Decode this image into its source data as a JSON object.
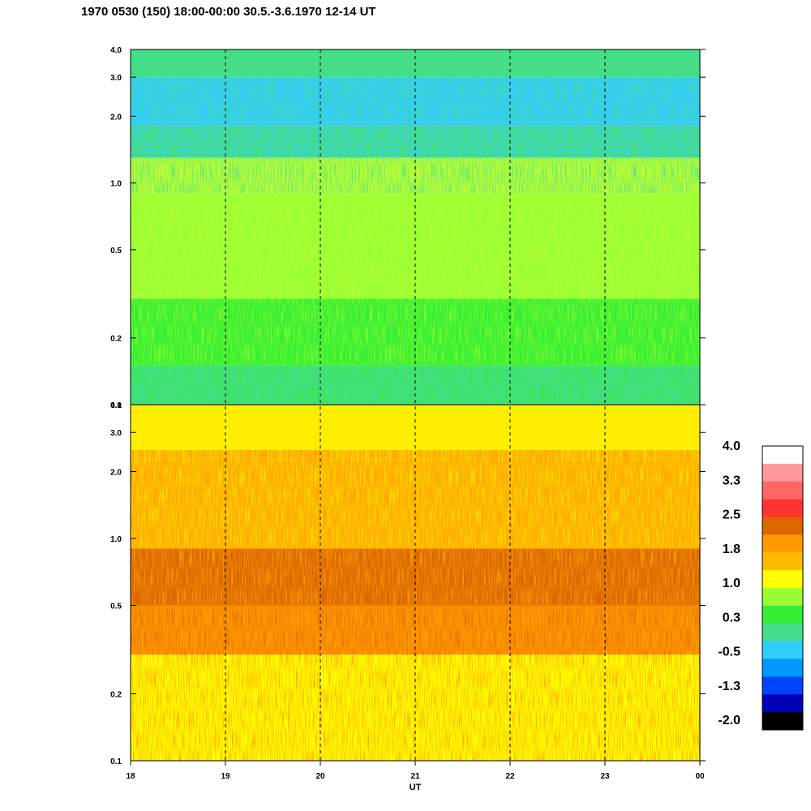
{
  "title": "1970 0530 (150) 18:00-00:00 30.5.-3.6.1970  12-14 UT",
  "chart_data": {
    "type": "heatmap",
    "xlabel": "UT",
    "x_ticks": [
      "18",
      "19",
      "20",
      "21",
      "22",
      "23",
      "00"
    ],
    "x_range": [
      18,
      24
    ],
    "vertical_dashed_lines_at": [
      19,
      20,
      21,
      22,
      23
    ],
    "y_scale": "log",
    "y_range": [
      0.1,
      4.0
    ],
    "y_ticks": [
      "0.1",
      "0.2",
      "0.5",
      "1.0",
      "2.0",
      "3.0",
      "4.0"
    ],
    "y_tick_values": [
      0.1,
      0.2,
      0.5,
      1.0,
      2.0,
      3.0,
      4.0
    ],
    "panels": [
      {
        "position": "top",
        "dominant_levels": [
          "0.3",
          "-0.5",
          "-1.3"
        ],
        "bands": [
          {
            "from": 0.1,
            "to": 0.15,
            "color": "#44dd88"
          },
          {
            "from": 0.15,
            "to": 0.3,
            "color": "#33ee33"
          },
          {
            "from": 0.3,
            "to": 0.9,
            "color": "#99ff33"
          },
          {
            "from": 0.9,
            "to": 1.3,
            "color": "#bbff33"
          },
          {
            "from": 1.3,
            "to": 1.8,
            "color": "#44dd88"
          },
          {
            "from": 1.8,
            "to": 3.0,
            "color": "#33ccff"
          },
          {
            "from": 3.0,
            "to": 4.0,
            "color": "#44dd88"
          }
        ]
      },
      {
        "position": "bottom",
        "dominant_levels": [
          "1.0",
          "1.8",
          "2.5"
        ],
        "bands": [
          {
            "from": 0.1,
            "to": 0.3,
            "color": "#ffff00"
          },
          {
            "from": 0.3,
            "to": 0.5,
            "color": "#ff9900"
          },
          {
            "from": 0.5,
            "to": 0.9,
            "color": "#dd6600"
          },
          {
            "from": 0.9,
            "to": 2.5,
            "color": "#ffaa00"
          },
          {
            "from": 2.5,
            "to": 4.0,
            "color": "#ffee00"
          }
        ]
      }
    ],
    "colorbar": {
      "labels": [
        "4.0",
        "3.3",
        "2.5",
        "1.8",
        "1.0",
        "0.3",
        "-0.5",
        "-1.3",
        "-2.0"
      ],
      "colors": [
        "#ffffff",
        "#ff9999",
        "#ff6666",
        "#ff3333",
        "#dd6600",
        "#ff9900",
        "#ffbb00",
        "#ffff00",
        "#99ff33",
        "#33ee33",
        "#44dd88",
        "#33ccff",
        "#0099ff",
        "#0044ff",
        "#0000bb",
        "#000000"
      ]
    }
  }
}
